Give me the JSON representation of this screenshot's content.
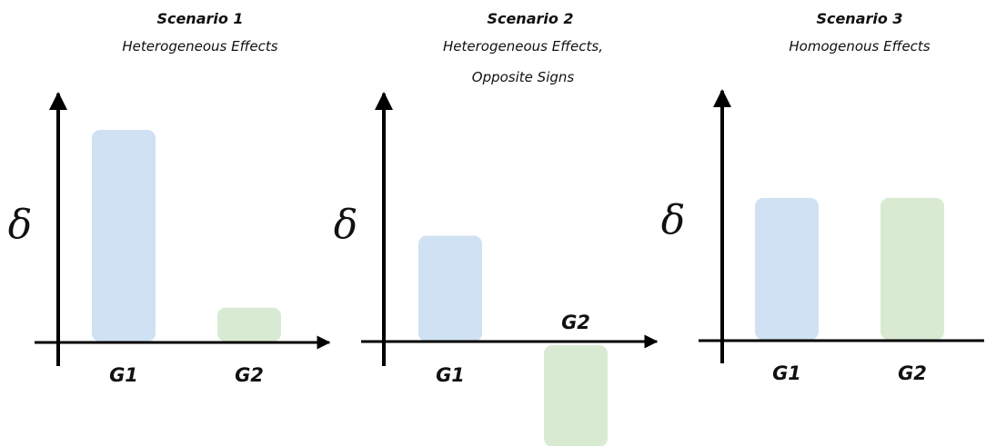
{
  "chart_data": [
    {
      "type": "bar",
      "title": "Scenario 1",
      "subtitle_lines": [
        "Heterogeneous Effects"
      ],
      "ylabel": "δ",
      "categories": [
        "G1",
        "G2"
      ],
      "values": [
        1.0,
        0.16
      ],
      "colors": [
        "#cfe1f3",
        "#d9ead3"
      ],
      "xlabel": "",
      "grid": false,
      "legend": "none"
    },
    {
      "type": "bar",
      "title": "Scenario 2",
      "subtitle_lines": [
        "Heterogeneous Effects,",
        "Opposite Signs"
      ],
      "ylabel": "δ",
      "categories": [
        "G1",
        "G2"
      ],
      "values": [
        0.5,
        -0.48
      ],
      "colors": [
        "#cfe1f3",
        "#d9ead3"
      ],
      "xlabel": "",
      "grid": false,
      "legend": "none"
    },
    {
      "type": "bar",
      "title": "Scenario 3",
      "subtitle_lines": [
        "Homogenous Effects"
      ],
      "ylabel": "δ",
      "categories": [
        "G1",
        "G2"
      ],
      "values": [
        0.67,
        0.67
      ],
      "colors": [
        "#cfe1f3",
        "#d9ead3"
      ],
      "xlabel": "",
      "grid": false,
      "legend": "none"
    }
  ]
}
